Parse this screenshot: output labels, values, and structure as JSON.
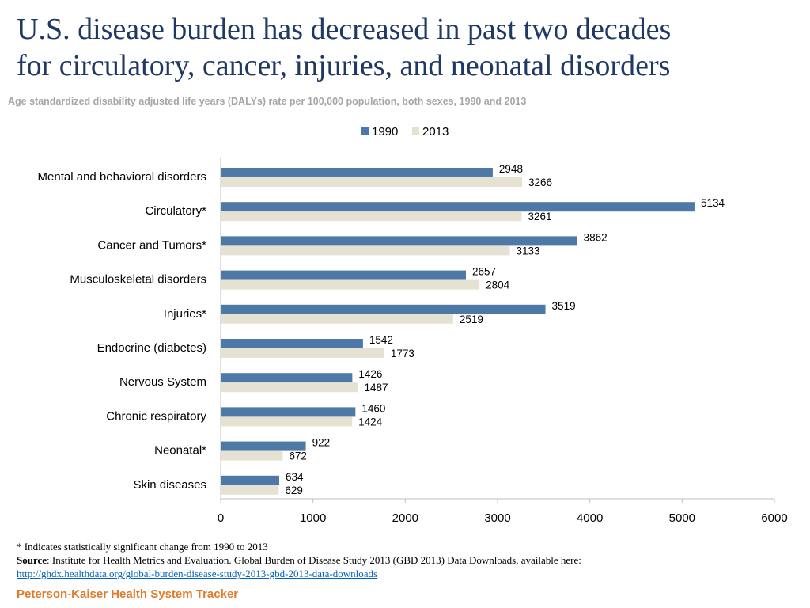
{
  "header": {
    "title_line1": "U.S. disease burden has decreased in past two decades",
    "title_line2": "for circulatory, cancer, injuries, and neonatal disorders",
    "subtitle": "Age standardized disability adjusted life years (DALYs) rate per 100,000 population, both sexes, 1990 and 2013"
  },
  "colors": {
    "series_1990": "#4e79a7",
    "series_2013": "#e6e2d3",
    "axis": "#bfbfbf",
    "text": "#000000"
  },
  "chart_data": {
    "type": "bar",
    "orientation": "horizontal",
    "title": "U.S. disease burden has decreased in past two decades for circulatory, cancer, injuries, and neonatal disorders",
    "subtitle": "Age standardized disability adjusted life years (DALYs) rate per 100,000 population, both sexes, 1990 and 2013",
    "categories": [
      "Mental and behavioral disorders",
      "Circulatory*",
      "Cancer and Tumors*",
      "Musculoskeletal disorders",
      "Injuries*",
      "Endocrine (diabetes)",
      "Nervous System",
      "Chronic respiratory",
      "Neonatal*",
      "Skin diseases"
    ],
    "series": [
      {
        "name": "1990",
        "values": [
          2948,
          5134,
          3862,
          2657,
          3519,
          1542,
          1426,
          1460,
          922,
          634
        ]
      },
      {
        "name": "2013",
        "values": [
          3266,
          3261,
          3133,
          2804,
          2519,
          1773,
          1487,
          1424,
          672,
          629
        ]
      }
    ],
    "xlim": [
      0,
      6000
    ],
    "xticks": [
      0,
      1000,
      2000,
      3000,
      4000,
      5000,
      6000
    ],
    "xlabel": "",
    "ylabel": "",
    "legend_position": "top-center",
    "data_labels": true,
    "grid": false
  },
  "footer": {
    "note": "* Indicates statistically significant change from 1990 to 2013",
    "source_label": "Source",
    "source_text": ": Institute for Health Metrics and Evaluation. Global Burden of Disease Study 2013 (GBD 2013) Data Downloads, available here:",
    "source_link": "http://ghdx.healthdata.org/global-burden-disease-study-2013-gbd-2013-data-downloads",
    "brand": "Peterson-Kaiser Health System Tracker"
  }
}
